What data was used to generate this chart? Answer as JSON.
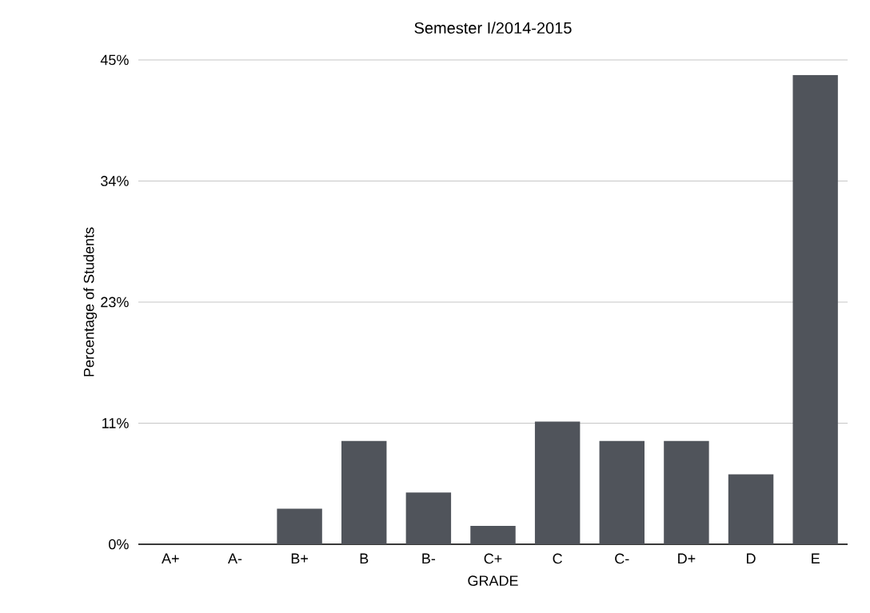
{
  "chart_data": {
    "type": "bar",
    "title": "Semester I/2014-2015",
    "xlabel": "GRADE",
    "ylabel": "Percentage of Students",
    "categories": [
      "A+",
      "A-",
      "B+",
      "B",
      "B-",
      "C+",
      "C",
      "C-",
      "D+",
      "D",
      "E"
    ],
    "values": [
      0,
      0,
      3.3,
      9.6,
      4.8,
      1.7,
      11.4,
      9.6,
      9.6,
      6.5,
      43.6
    ],
    "color": "#50545b",
    "ylim": [
      0,
      45
    ],
    "yticks": [
      {
        "value": 0,
        "label": "0%"
      },
      {
        "value": 11.25,
        "label": "11%"
      },
      {
        "value": 22.5,
        "label": "23%"
      },
      {
        "value": 33.75,
        "label": "34%"
      },
      {
        "value": 45,
        "label": "45%"
      }
    ],
    "grid": "y"
  }
}
